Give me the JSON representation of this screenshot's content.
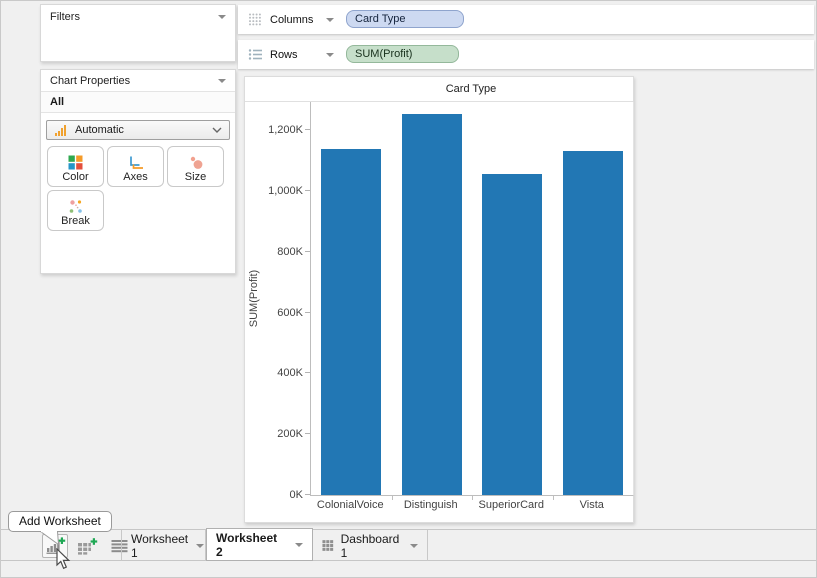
{
  "window": {
    "background": "#f0f0f0",
    "border_color": "#c9c9c9"
  },
  "filters_panel": {
    "title": "Filters"
  },
  "chart_properties": {
    "title": "Chart Properties",
    "scope": "All",
    "mark_type": {
      "value": "Automatic",
      "icon": "bar-chart-icon"
    },
    "buttons": [
      {
        "label": "Color",
        "icon": "color-squares-icon"
      },
      {
        "label": "Axes",
        "icon": "axes-icon"
      },
      {
        "label": "Size",
        "icon": "size-circles-icon"
      },
      {
        "label": "Break",
        "icon": "break-dots-icon"
      }
    ]
  },
  "shelves": {
    "columns": {
      "label": "Columns",
      "pill": "Card Type",
      "pill_color": "#cdd9f1",
      "pill_border": "#8fa4cd"
    },
    "rows": {
      "label": "Rows",
      "pill": "SUM(Profit)",
      "pill_color": "#c6dfca",
      "pill_border": "#94b89b"
    }
  },
  "chart_data": {
    "type": "bar",
    "title": "Card Type",
    "xlabel": "",
    "ylabel": "SUM(Profit)",
    "categories": [
      "ColonialVoice",
      "Distinguish",
      "SuperiorCard",
      "Vista"
    ],
    "values": [
      1137000,
      1253000,
      1055000,
      1131000
    ],
    "yticks": [
      {
        "label": "0K",
        "value": 0
      },
      {
        "label": "200K",
        "value": 200000
      },
      {
        "label": "400K",
        "value": 400000
      },
      {
        "label": "600K",
        "value": 600000
      },
      {
        "label": "800K",
        "value": 800000
      },
      {
        "label": "1,000K",
        "value": 1000000
      },
      {
        "label": "1,200K",
        "value": 1200000
      }
    ],
    "ylim": [
      0,
      1292000
    ],
    "bar_color": "#2277b4",
    "grid": false,
    "legend": false
  },
  "sheet_bar": {
    "icons": [
      "add-worksheet-icon",
      "add-dashboard-icon",
      "sheet-list-icon"
    ],
    "tabs": [
      {
        "label": "Worksheet 1",
        "active": false
      },
      {
        "label": "Worksheet 2",
        "active": true
      },
      {
        "label": "Dashboard 1",
        "active": false,
        "icon": "dashboard-grid-icon"
      }
    ]
  },
  "tooltip": {
    "text": "Add Worksheet"
  }
}
